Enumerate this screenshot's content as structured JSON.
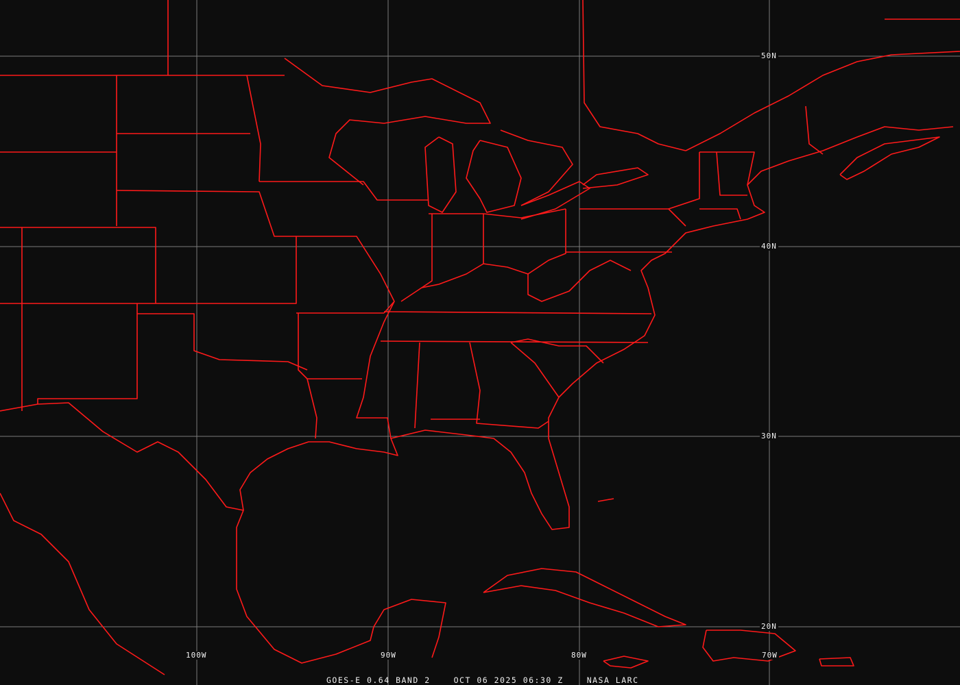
{
  "image": {
    "line_color": "#ff1a1a",
    "grid_color": "#7c7c7c",
    "background": "#0d0d0d"
  },
  "grid_labels": {
    "lat": [
      "50N",
      "40N",
      "30N",
      "20N"
    ],
    "lon": [
      "100W",
      "90W",
      "80W",
      "70W"
    ]
  },
  "caption": {
    "product": "GOES-E 0.64 BAND 2",
    "datetime": "OCT 06 2025 06:30 Z",
    "source": "NASA LARC"
  }
}
